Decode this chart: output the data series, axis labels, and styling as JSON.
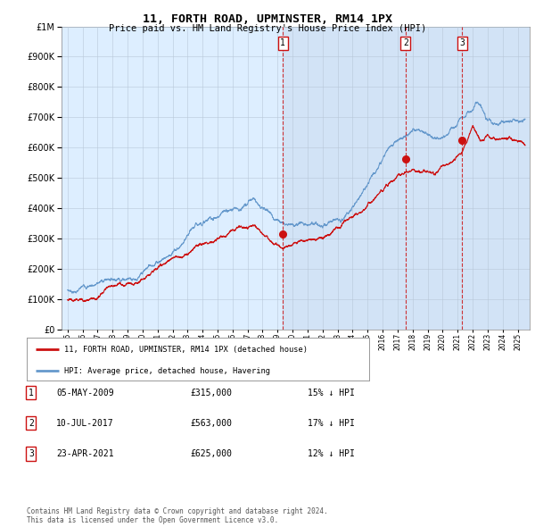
{
  "title": "11, FORTH ROAD, UPMINSTER, RM14 1PX",
  "subtitle": "Price paid vs. HM Land Registry's House Price Index (HPI)",
  "ytick_values": [
    0,
    100000,
    200000,
    300000,
    400000,
    500000,
    600000,
    700000,
    800000,
    900000,
    1000000
  ],
  "ylim": [
    0,
    1000000
  ],
  "xlim_start": 1994.6,
  "xlim_end": 2025.8,
  "bg_color": "#ddeeff",
  "hpi_line_color": "#6699cc",
  "price_line_color": "#cc1111",
  "sale_marker_color": "#cc1111",
  "vline_color": "#cc1111",
  "shade_color": "#ccddf0",
  "transactions": [
    {
      "id": 1,
      "date_str": "05-MAY-2009",
      "year": 2009.35,
      "price": 315000,
      "pct": "15%",
      "direction": "↓"
    },
    {
      "id": 2,
      "date_str": "10-JUL-2017",
      "year": 2017.53,
      "price": 563000,
      "pct": "17%",
      "direction": "↓"
    },
    {
      "id": 3,
      "date_str": "23-APR-2021",
      "year": 2021.31,
      "price": 625000,
      "pct": "12%",
      "direction": "↓"
    }
  ],
  "legend_label_red": "11, FORTH ROAD, UPMINSTER, RM14 1PX (detached house)",
  "legend_label_blue": "HPI: Average price, detached house, Havering",
  "footer": "Contains HM Land Registry data © Crown copyright and database right 2024.\nThis data is licensed under the Open Government Licence v3.0.",
  "table_rows": [
    {
      "id": 1,
      "date": "05-MAY-2009",
      "price": "£315,000",
      "note": "15% ↓ HPI"
    },
    {
      "id": 2,
      "date": "10-JUL-2017",
      "price": "£563,000",
      "note": "17% ↓ HPI"
    },
    {
      "id": 3,
      "date": "23-APR-2021",
      "price": "£625,000",
      "note": "12% ↓ HPI"
    }
  ]
}
